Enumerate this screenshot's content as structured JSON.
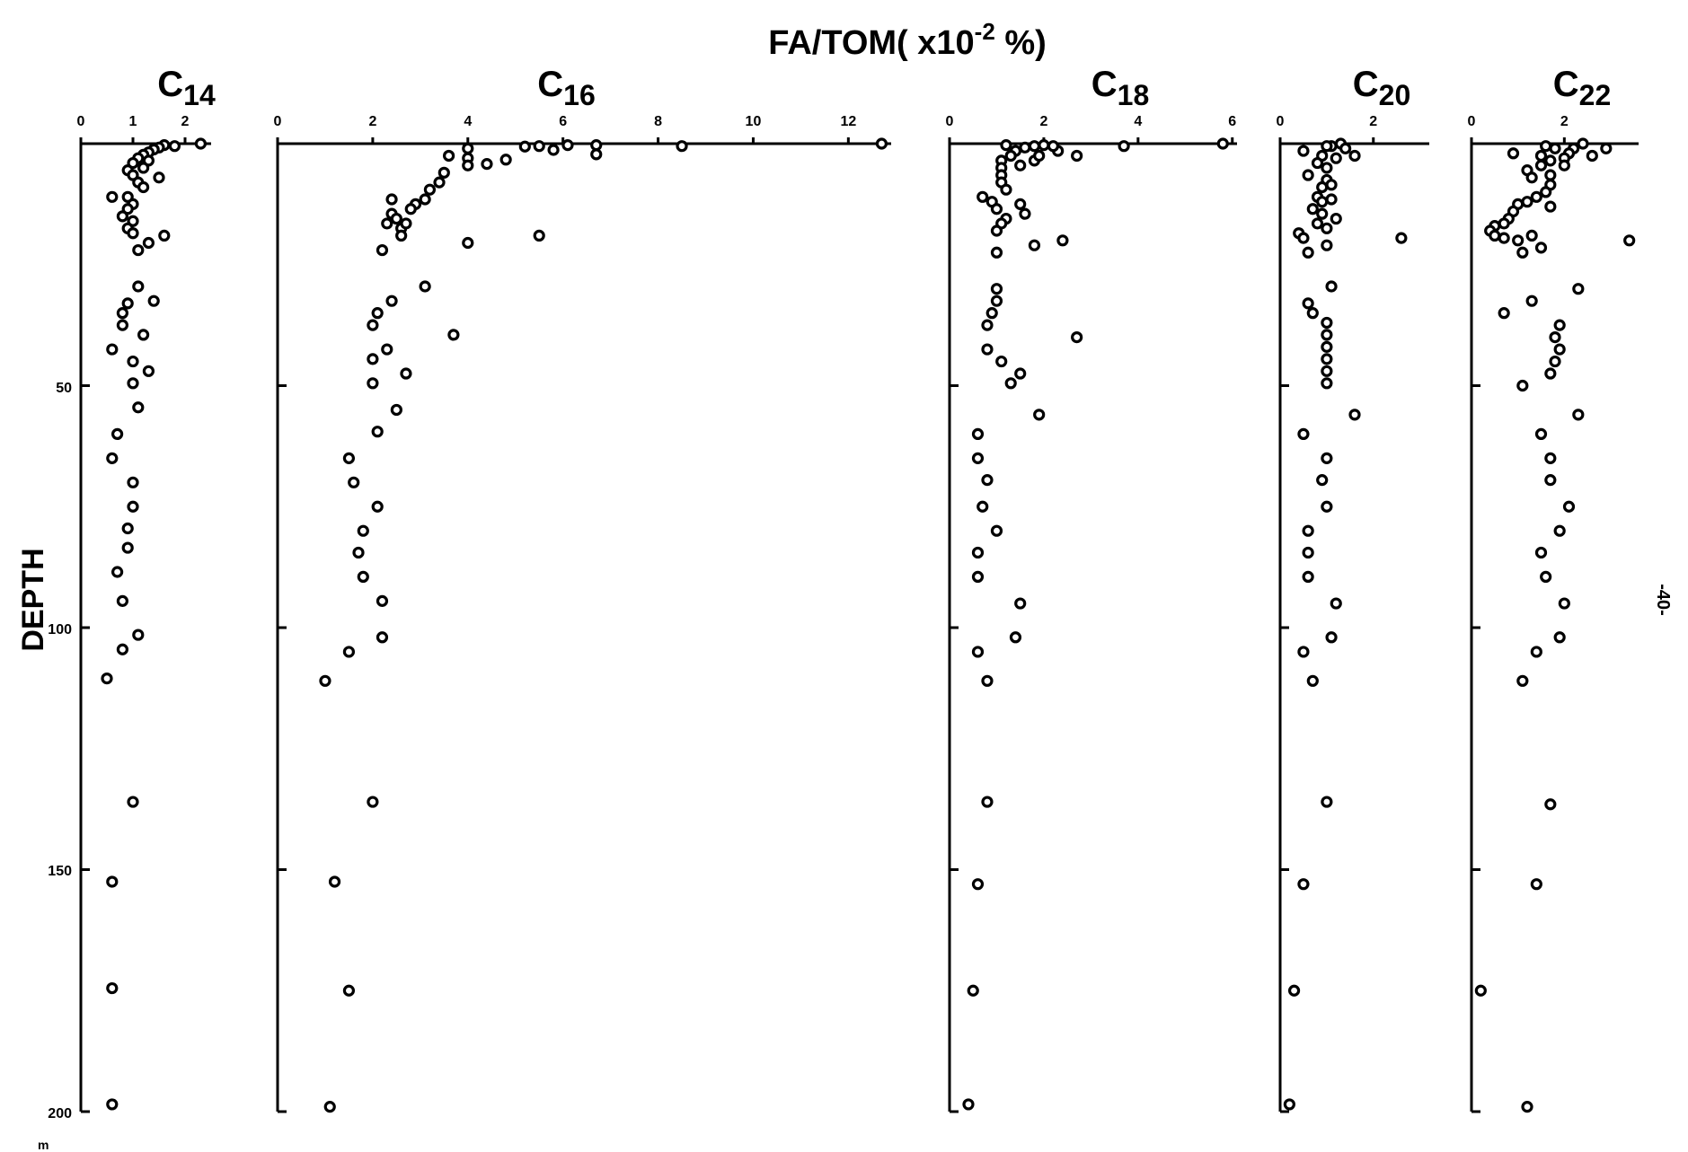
{
  "title": "FA/TOM( x10",
  "title_sup": "-2",
  "title_end": " %)",
  "ylabel": "DEPTH",
  "yunit": "m",
  "page_mark": "-40-",
  "ytick_labels": [
    "50",
    "100",
    "150",
    "200"
  ],
  "chart_data": [
    {
      "type": "scatter",
      "panel": "C14",
      "title_main": "C",
      "title_sub": "14",
      "xlim": [
        0,
        2.5
      ],
      "xticks": [
        0,
        1,
        2
      ],
      "xtick_labels": [
        "0",
        "1",
        "2"
      ],
      "ylim": [
        0,
        200
      ],
      "y_inverted": true,
      "xlabel": "FA/TOM (x10^-2 %)",
      "ylabel_axis": "DEPTH (m)",
      "points": [
        {
          "x": 2.3,
          "y": 0
        },
        {
          "x": 1.8,
          "y": 0.5
        },
        {
          "x": 1.6,
          "y": 0.3
        },
        {
          "x": 1.5,
          "y": 0.8
        },
        {
          "x": 1.4,
          "y": 1.2
        },
        {
          "x": 1.3,
          "y": 1.8
        },
        {
          "x": 1.2,
          "y": 2.3
        },
        {
          "x": 1.1,
          "y": 3.0
        },
        {
          "x": 1.3,
          "y": 3.5
        },
        {
          "x": 1.0,
          "y": 4.0
        },
        {
          "x": 0.9,
          "y": 5.5
        },
        {
          "x": 1.0,
          "y": 6.5
        },
        {
          "x": 1.1,
          "y": 8.0
        },
        {
          "x": 1.5,
          "y": 7.0
        },
        {
          "x": 1.2,
          "y": 9.0
        },
        {
          "x": 1.2,
          "y": 5.0
        },
        {
          "x": 0.6,
          "y": 11.0
        },
        {
          "x": 0.9,
          "y": 11.0
        },
        {
          "x": 1.0,
          "y": 12.5
        },
        {
          "x": 0.9,
          "y": 13.5
        },
        {
          "x": 0.8,
          "y": 15.0
        },
        {
          "x": 1.0,
          "y": 16.0
        },
        {
          "x": 0.9,
          "y": 17.5
        },
        {
          "x": 1.0,
          "y": 18.5
        },
        {
          "x": 1.6,
          "y": 19.0
        },
        {
          "x": 1.3,
          "y": 20.5
        },
        {
          "x": 1.1,
          "y": 22.0
        },
        {
          "x": 1.1,
          "y": 29.5
        },
        {
          "x": 1.4,
          "y": 32.5
        },
        {
          "x": 0.9,
          "y": 33.0
        },
        {
          "x": 0.8,
          "y": 35.0
        },
        {
          "x": 0.8,
          "y": 37.5
        },
        {
          "x": 1.2,
          "y": 39.5
        },
        {
          "x": 0.6,
          "y": 42.5
        },
        {
          "x": 1.0,
          "y": 45.0
        },
        {
          "x": 1.3,
          "y": 47.0
        },
        {
          "x": 1.0,
          "y": 49.5
        },
        {
          "x": 1.1,
          "y": 54.5
        },
        {
          "x": 0.7,
          "y": 60.0
        },
        {
          "x": 0.6,
          "y": 65.0
        },
        {
          "x": 1.0,
          "y": 70.0
        },
        {
          "x": 1.0,
          "y": 75.0
        },
        {
          "x": 0.9,
          "y": 79.5
        },
        {
          "x": 0.9,
          "y": 83.5
        },
        {
          "x": 0.7,
          "y": 88.5
        },
        {
          "x": 0.8,
          "y": 94.5
        },
        {
          "x": 1.1,
          "y": 101.5
        },
        {
          "x": 0.8,
          "y": 104.5
        },
        {
          "x": 0.5,
          "y": 110.5
        },
        {
          "x": 1.0,
          "y": 136.0
        },
        {
          "x": 0.6,
          "y": 152.5
        },
        {
          "x": 0.6,
          "y": 174.5
        },
        {
          "x": 0.6,
          "y": 198.5
        }
      ]
    },
    {
      "type": "scatter",
      "panel": "C16",
      "title_main": "C",
      "title_sub": "16",
      "xlim": [
        0,
        12.9
      ],
      "xticks": [
        0,
        2,
        4,
        6,
        8,
        10,
        12
      ],
      "xtick_labels": [
        "0",
        "2",
        "4",
        "6",
        "8",
        "10",
        "12"
      ],
      "ylim": [
        0,
        200
      ],
      "y_inverted": true,
      "xlabel": "FA/TOM (x10^-2 %)",
      "ylabel_axis": "DEPTH (m)",
      "points": [
        {
          "x": 12.7,
          "y": 0
        },
        {
          "x": 8.5,
          "y": 0.5
        },
        {
          "x": 6.7,
          "y": 0.3
        },
        {
          "x": 6.7,
          "y": 2.2
        },
        {
          "x": 6.1,
          "y": 0.3
        },
        {
          "x": 5.8,
          "y": 1.3
        },
        {
          "x": 5.5,
          "y": 0.5
        },
        {
          "x": 5.2,
          "y": 0.6
        },
        {
          "x": 4.8,
          "y": 3.3
        },
        {
          "x": 4.4,
          "y": 4.2
        },
        {
          "x": 4.0,
          "y": 1.0
        },
        {
          "x": 4.0,
          "y": 3.0
        },
        {
          "x": 4.0,
          "y": 4.5
        },
        {
          "x": 3.6,
          "y": 2.5
        },
        {
          "x": 3.5,
          "y": 6.0
        },
        {
          "x": 3.4,
          "y": 8.0
        },
        {
          "x": 3.2,
          "y": 9.5
        },
        {
          "x": 3.1,
          "y": 11.5
        },
        {
          "x": 2.9,
          "y": 12.5
        },
        {
          "x": 2.8,
          "y": 13.5
        },
        {
          "x": 2.4,
          "y": 11.5
        },
        {
          "x": 2.4,
          "y": 14.5
        },
        {
          "x": 2.5,
          "y": 15.5
        },
        {
          "x": 2.3,
          "y": 16.5
        },
        {
          "x": 2.6,
          "y": 17.5
        },
        {
          "x": 2.7,
          "y": 16.5
        },
        {
          "x": 2.6,
          "y": 19.0
        },
        {
          "x": 5.5,
          "y": 19.0
        },
        {
          "x": 4.0,
          "y": 20.5
        },
        {
          "x": 2.2,
          "y": 22.0
        },
        {
          "x": 3.1,
          "y": 29.5
        },
        {
          "x": 2.4,
          "y": 32.5
        },
        {
          "x": 2.1,
          "y": 35.0
        },
        {
          "x": 2.0,
          "y": 37.5
        },
        {
          "x": 3.7,
          "y": 39.5
        },
        {
          "x": 2.3,
          "y": 42.5
        },
        {
          "x": 2.0,
          "y": 44.5
        },
        {
          "x": 2.7,
          "y": 47.5
        },
        {
          "x": 2.0,
          "y": 49.5
        },
        {
          "x": 2.5,
          "y": 55.0
        },
        {
          "x": 2.1,
          "y": 59.5
        },
        {
          "x": 1.5,
          "y": 65.0
        },
        {
          "x": 1.6,
          "y": 70.0
        },
        {
          "x": 2.1,
          "y": 75.0
        },
        {
          "x": 1.8,
          "y": 80.0
        },
        {
          "x": 1.7,
          "y": 84.5
        },
        {
          "x": 1.8,
          "y": 89.5
        },
        {
          "x": 2.2,
          "y": 94.5
        },
        {
          "x": 2.2,
          "y": 102.0
        },
        {
          "x": 1.5,
          "y": 105.0
        },
        {
          "x": 1.0,
          "y": 111.0
        },
        {
          "x": 2.0,
          "y": 136.0
        },
        {
          "x": 1.2,
          "y": 152.5
        },
        {
          "x": 1.5,
          "y": 175.0
        },
        {
          "x": 1.1,
          "y": 199.0
        }
      ]
    },
    {
      "type": "scatter",
      "panel": "C18",
      "title_main": "C",
      "title_sub": "18",
      "xlim": [
        0,
        6.1
      ],
      "xticks": [
        0,
        2,
        4,
        6
      ],
      "xtick_labels": [
        "0",
        "2",
        "4",
        "6"
      ],
      "ylim": [
        0,
        200
      ],
      "y_inverted": true,
      "xlabel": "FA/TOM (x10^-2 %)",
      "ylabel_axis": "DEPTH (m)",
      "points": [
        {
          "x": 5.8,
          "y": 0
        },
        {
          "x": 3.7,
          "y": 0.5
        },
        {
          "x": 2.7,
          "y": 2.5
        },
        {
          "x": 2.3,
          "y": 1.5
        },
        {
          "x": 2.2,
          "y": 0.5
        },
        {
          "x": 2.0,
          "y": 0.3
        },
        {
          "x": 1.8,
          "y": 0.5
        },
        {
          "x": 1.6,
          "y": 0.8
        },
        {
          "x": 1.4,
          "y": 1.5
        },
        {
          "x": 1.2,
          "y": 0.3
        },
        {
          "x": 1.3,
          "y": 2.5
        },
        {
          "x": 1.5,
          "y": 4.5
        },
        {
          "x": 1.8,
          "y": 3.5
        },
        {
          "x": 1.9,
          "y": 2.5
        },
        {
          "x": 1.1,
          "y": 3.5
        },
        {
          "x": 1.1,
          "y": 5.0
        },
        {
          "x": 1.1,
          "y": 6.5
        },
        {
          "x": 1.1,
          "y": 8.0
        },
        {
          "x": 1.2,
          "y": 9.5
        },
        {
          "x": 0.7,
          "y": 11.0
        },
        {
          "x": 0.9,
          "y": 12.0
        },
        {
          "x": 1.0,
          "y": 13.5
        },
        {
          "x": 1.5,
          "y": 12.5
        },
        {
          "x": 1.6,
          "y": 14.5
        },
        {
          "x": 1.2,
          "y": 15.5
        },
        {
          "x": 1.1,
          "y": 16.5
        },
        {
          "x": 1.0,
          "y": 18.0
        },
        {
          "x": 1.8,
          "y": 21.0
        },
        {
          "x": 2.4,
          "y": 20.0
        },
        {
          "x": 1.0,
          "y": 22.5
        },
        {
          "x": 1.0,
          "y": 30.0
        },
        {
          "x": 1.0,
          "y": 32.5
        },
        {
          "x": 0.9,
          "y": 35.0
        },
        {
          "x": 0.8,
          "y": 37.5
        },
        {
          "x": 2.7,
          "y": 40.0
        },
        {
          "x": 0.8,
          "y": 42.5
        },
        {
          "x": 1.1,
          "y": 45.0
        },
        {
          "x": 1.5,
          "y": 47.5
        },
        {
          "x": 1.3,
          "y": 49.5
        },
        {
          "x": 1.9,
          "y": 56.0
        },
        {
          "x": 0.6,
          "y": 60.0
        },
        {
          "x": 0.6,
          "y": 65.0
        },
        {
          "x": 0.8,
          "y": 69.5
        },
        {
          "x": 0.7,
          "y": 75.0
        },
        {
          "x": 1.0,
          "y": 80.0
        },
        {
          "x": 0.6,
          "y": 84.5
        },
        {
          "x": 0.6,
          "y": 89.5
        },
        {
          "x": 1.5,
          "y": 95.0
        },
        {
          "x": 1.4,
          "y": 102.0
        },
        {
          "x": 0.6,
          "y": 105.0
        },
        {
          "x": 0.8,
          "y": 111.0
        },
        {
          "x": 0.8,
          "y": 136.0
        },
        {
          "x": 0.6,
          "y": 153.0
        },
        {
          "x": 0.5,
          "y": 175.0
        },
        {
          "x": 0.4,
          "y": 198.5
        }
      ]
    },
    {
      "type": "scatter",
      "panel": "C20",
      "title_main": "C",
      "title_sub": "20",
      "xlim": [
        0,
        3.2
      ],
      "xticks": [
        0,
        2
      ],
      "xtick_labels": [
        "0",
        "2"
      ],
      "ylim": [
        0,
        200
      ],
      "y_inverted": true,
      "xlabel": "FA/TOM (x10^-2 %)",
      "ylabel_axis": "DEPTH (m)",
      "points": [
        {
          "x": 1.3,
          "y": 0
        },
        {
          "x": 1.1,
          "y": 0.5
        },
        {
          "x": 1.4,
          "y": 1.0
        },
        {
          "x": 1.6,
          "y": 2.5
        },
        {
          "x": 1.0,
          "y": 0.5
        },
        {
          "x": 0.5,
          "y": 1.5
        },
        {
          "x": 0.9,
          "y": 2.5
        },
        {
          "x": 1.2,
          "y": 3.0
        },
        {
          "x": 0.8,
          "y": 4.0
        },
        {
          "x": 1.0,
          "y": 5.0
        },
        {
          "x": 0.6,
          "y": 6.5
        },
        {
          "x": 1.0,
          "y": 7.5
        },
        {
          "x": 0.9,
          "y": 9.0
        },
        {
          "x": 1.1,
          "y": 8.5
        },
        {
          "x": 0.8,
          "y": 11.0
        },
        {
          "x": 0.9,
          "y": 12.0
        },
        {
          "x": 1.1,
          "y": 11.5
        },
        {
          "x": 0.7,
          "y": 13.5
        },
        {
          "x": 0.9,
          "y": 14.5
        },
        {
          "x": 1.2,
          "y": 15.5
        },
        {
          "x": 0.8,
          "y": 16.5
        },
        {
          "x": 1.0,
          "y": 17.5
        },
        {
          "x": 0.4,
          "y": 18.5
        },
        {
          "x": 0.5,
          "y": 19.5
        },
        {
          "x": 2.6,
          "y": 19.5
        },
        {
          "x": 1.0,
          "y": 21.0
        },
        {
          "x": 0.6,
          "y": 22.5
        },
        {
          "x": 1.1,
          "y": 29.5
        },
        {
          "x": 0.6,
          "y": 33.0
        },
        {
          "x": 0.7,
          "y": 35.0
        },
        {
          "x": 1.0,
          "y": 37.0
        },
        {
          "x": 1.0,
          "y": 39.5
        },
        {
          "x": 1.0,
          "y": 42.0
        },
        {
          "x": 1.0,
          "y": 44.5
        },
        {
          "x": 1.0,
          "y": 47.0
        },
        {
          "x": 1.0,
          "y": 49.5
        },
        {
          "x": 1.6,
          "y": 56.0
        },
        {
          "x": 0.5,
          "y": 60.0
        },
        {
          "x": 1.0,
          "y": 65.0
        },
        {
          "x": 0.9,
          "y": 69.5
        },
        {
          "x": 1.0,
          "y": 75.0
        },
        {
          "x": 0.6,
          "y": 80.0
        },
        {
          "x": 0.6,
          "y": 84.5
        },
        {
          "x": 0.6,
          "y": 89.5
        },
        {
          "x": 1.2,
          "y": 95.0
        },
        {
          "x": 1.1,
          "y": 102.0
        },
        {
          "x": 0.5,
          "y": 105.0
        },
        {
          "x": 0.7,
          "y": 111.0
        },
        {
          "x": 1.0,
          "y": 136.0
        },
        {
          "x": 0.5,
          "y": 153.0
        },
        {
          "x": 0.3,
          "y": 175.0
        },
        {
          "x": 0.2,
          "y": 198.5
        }
      ]
    },
    {
      "type": "scatter",
      "panel": "C22",
      "title_main": "C",
      "title_sub": "22",
      "xlim": [
        0,
        3.6
      ],
      "xticks": [
        0,
        2
      ],
      "xtick_labels": [
        "0",
        "2"
      ],
      "ylim": [
        0,
        200
      ],
      "y_inverted": true,
      "xlabel": "FA/TOM (x10^-2 %)",
      "ylabel_axis": "DEPTH (m)",
      "points": [
        {
          "x": 2.4,
          "y": 0
        },
        {
          "x": 2.9,
          "y": 1.0
        },
        {
          "x": 2.6,
          "y": 2.5
        },
        {
          "x": 2.2,
          "y": 1.0
        },
        {
          "x": 2.1,
          "y": 2.0
        },
        {
          "x": 2.0,
          "y": 3.0
        },
        {
          "x": 2.0,
          "y": 4.5
        },
        {
          "x": 1.8,
          "y": 1.0
        },
        {
          "x": 1.6,
          "y": 0.5
        },
        {
          "x": 1.5,
          "y": 2.5
        },
        {
          "x": 1.7,
          "y": 3.5
        },
        {
          "x": 1.5,
          "y": 4.5
        },
        {
          "x": 1.2,
          "y": 5.5
        },
        {
          "x": 1.3,
          "y": 7.0
        },
        {
          "x": 0.9,
          "y": 2.0
        },
        {
          "x": 1.7,
          "y": 6.5
        },
        {
          "x": 1.7,
          "y": 8.5
        },
        {
          "x": 1.6,
          "y": 10.0
        },
        {
          "x": 1.4,
          "y": 11.0
        },
        {
          "x": 1.2,
          "y": 12.0
        },
        {
          "x": 1.0,
          "y": 12.5
        },
        {
          "x": 0.9,
          "y": 14.0
        },
        {
          "x": 0.8,
          "y": 15.5
        },
        {
          "x": 0.7,
          "y": 16.5
        },
        {
          "x": 0.5,
          "y": 17.0
        },
        {
          "x": 0.4,
          "y": 18.0
        },
        {
          "x": 0.5,
          "y": 19.0
        },
        {
          "x": 0.7,
          "y": 19.5
        },
        {
          "x": 1.0,
          "y": 20.0
        },
        {
          "x": 1.3,
          "y": 19.0
        },
        {
          "x": 1.7,
          "y": 13.0
        },
        {
          "x": 3.4,
          "y": 20.0
        },
        {
          "x": 1.5,
          "y": 21.5
        },
        {
          "x": 1.1,
          "y": 22.5
        },
        {
          "x": 2.3,
          "y": 30.0
        },
        {
          "x": 1.3,
          "y": 32.5
        },
        {
          "x": 0.7,
          "y": 35.0
        },
        {
          "x": 1.9,
          "y": 37.5
        },
        {
          "x": 1.8,
          "y": 40.0
        },
        {
          "x": 1.9,
          "y": 42.5
        },
        {
          "x": 1.8,
          "y": 45.0
        },
        {
          "x": 1.7,
          "y": 47.5
        },
        {
          "x": 1.1,
          "y": 50.0
        },
        {
          "x": 2.3,
          "y": 56.0
        },
        {
          "x": 1.5,
          "y": 60.0
        },
        {
          "x": 1.7,
          "y": 65.0
        },
        {
          "x": 1.7,
          "y": 69.5
        },
        {
          "x": 2.1,
          "y": 75.0
        },
        {
          "x": 1.9,
          "y": 80.0
        },
        {
          "x": 1.5,
          "y": 84.5
        },
        {
          "x": 1.6,
          "y": 89.5
        },
        {
          "x": 2.0,
          "y": 95.0
        },
        {
          "x": 1.9,
          "y": 102.0
        },
        {
          "x": 1.4,
          "y": 105.0
        },
        {
          "x": 1.1,
          "y": 111.0
        },
        {
          "x": 1.7,
          "y": 136.5
        },
        {
          "x": 1.4,
          "y": 153.0
        },
        {
          "x": 0.2,
          "y": 175.0
        },
        {
          "x": 1.2,
          "y": 199.0
        }
      ]
    }
  ]
}
